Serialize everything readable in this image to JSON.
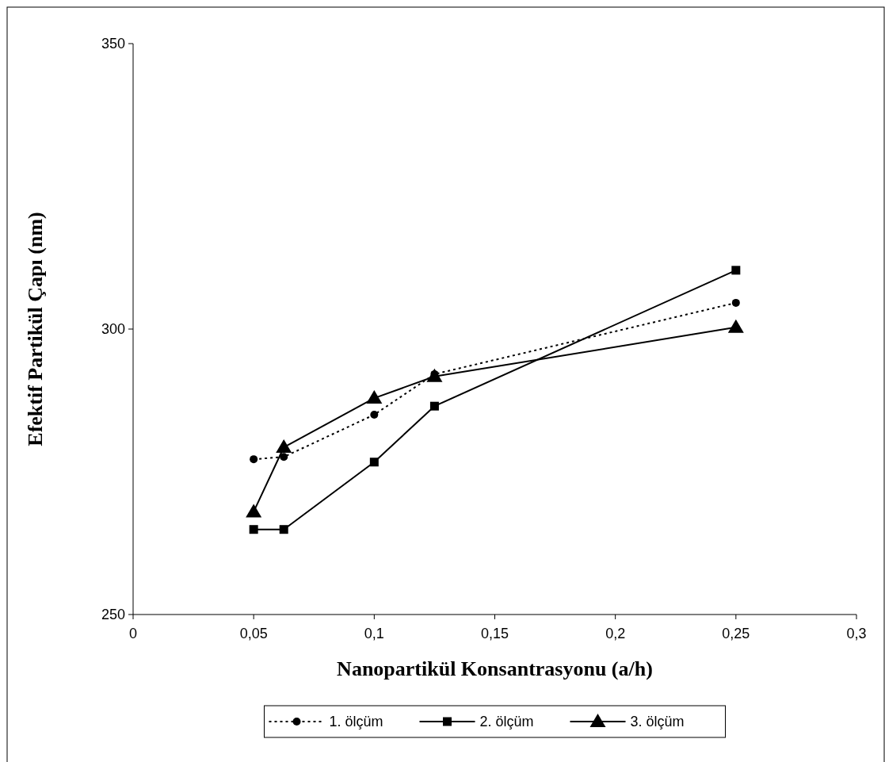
{
  "chart_data": {
    "type": "line",
    "xlabel": "Nanopartikül Konsantrasyonu (a/h)",
    "ylabel": "Efektif Partikül Çapı (nm)",
    "x": [
      0.05,
      0.0625,
      0.1,
      0.125,
      0.25
    ],
    "series": [
      {
        "name": "1. ölçüm",
        "color": "#000000",
        "marker": "circle",
        "line_style": "dotted",
        "values": [
          277.2,
          277.6,
          285,
          292.1,
          304.6
        ]
      },
      {
        "name": "2. ölçüm",
        "color": "#000000",
        "marker": "square",
        "line_style": "solid",
        "values": [
          264.9,
          264.9,
          276.7,
          286.5,
          310.3
        ]
      },
      {
        "name": "3. ölçüm",
        "color": "#000000",
        "marker": "triangle",
        "line_style": "solid",
        "values": [
          268,
          279.3,
          287.9,
          291.7,
          300.3
        ]
      }
    ],
    "xlim": [
      0,
      0.3
    ],
    "xticks": [
      {
        "value": 0,
        "label": "0"
      },
      {
        "value": 0.05,
        "label": "0,05"
      },
      {
        "value": 0.1,
        "label": "0,1"
      },
      {
        "value": 0.15,
        "label": "0,15"
      },
      {
        "value": 0.2,
        "label": "0,2"
      },
      {
        "value": 0.25,
        "label": "0,25"
      },
      {
        "value": 0.3,
        "label": "0,3"
      }
    ],
    "ylim": [
      250,
      350
    ],
    "yticks": [
      250,
      300,
      350
    ],
    "grid": false,
    "legend": "bottom"
  }
}
